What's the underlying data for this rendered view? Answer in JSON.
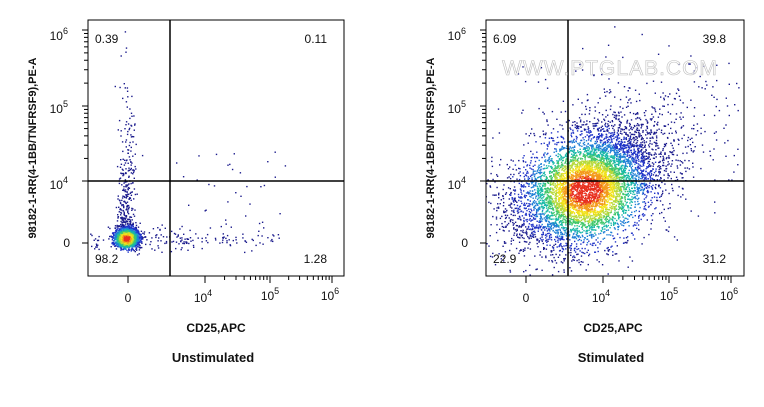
{
  "watermark": "WWW.PTGLAB.COM",
  "colors": {
    "frame": "#000000",
    "density": [
      "#1a1a8c",
      "#2034c8",
      "#1f7fd6",
      "#18b8a8",
      "#41c76b",
      "#b7d93a",
      "#f2e21b",
      "#f39a1c",
      "#e8301e"
    ]
  },
  "chart_data": [
    {
      "type": "scatter",
      "subtype": "flow-cytometry-density-dot-plot",
      "caption": "Unstimulated",
      "xlabel": "CD25,APC",
      "ylabel": "98182-1-RR(4-1BB/TNFRSF9),PE-A",
      "x_ticks": [
        {
          "label": "0",
          "sup": ""
        },
        {
          "label": "10",
          "sup": "4"
        },
        {
          "label": "10",
          "sup": "5"
        },
        {
          "label": "10",
          "sup": "6"
        }
      ],
      "y_ticks": [
        {
          "label": "0",
          "sup": ""
        },
        {
          "label": "10",
          "sup": "4"
        },
        {
          "label": "10",
          "sup": "5"
        },
        {
          "label": "10",
          "sup": "6"
        }
      ],
      "gate": {
        "x": 2000,
        "y": 10000
      },
      "quadrants": {
        "top_left": "0.39",
        "top_right": "0.11",
        "bottom_left": "98.2",
        "bottom_right": "1.28"
      },
      "populations": [
        {
          "name": "main-cluster",
          "x_center": 0,
          "y_center": 0,
          "fraction": 0.97
        },
        {
          "name": "vertical-tail",
          "x_center": 0,
          "y_center": 8000,
          "fraction": 0.02
        },
        {
          "name": "cd25-positive-scatter",
          "x_center": 8000,
          "y_center": 0,
          "fraction": 0.01
        }
      ]
    },
    {
      "type": "scatter",
      "subtype": "flow-cytometry-density-dot-plot",
      "caption": "Stimulated",
      "xlabel": "CD25,APC",
      "ylabel": "98182-1-RR(4-1BB/TNFRSF9),PE-A",
      "x_ticks": [
        {
          "label": "0",
          "sup": ""
        },
        {
          "label": "10",
          "sup": "4"
        },
        {
          "label": "10",
          "sup": "5"
        },
        {
          "label": "10",
          "sup": "6"
        }
      ],
      "y_ticks": [
        {
          "label": "0",
          "sup": ""
        },
        {
          "label": "10",
          "sup": "4"
        },
        {
          "label": "10",
          "sup": "5"
        },
        {
          "label": "10",
          "sup": "6"
        }
      ],
      "gate": {
        "x": 2000,
        "y": 10000
      },
      "quadrants": {
        "top_left": "6.09",
        "top_right": "39.8",
        "bottom_left": "22.9",
        "bottom_right": "31.2"
      },
      "populations": [
        {
          "name": "activated-cloud",
          "x_center": 4000,
          "y_center": 8000,
          "fraction": 1.0
        }
      ]
    }
  ]
}
